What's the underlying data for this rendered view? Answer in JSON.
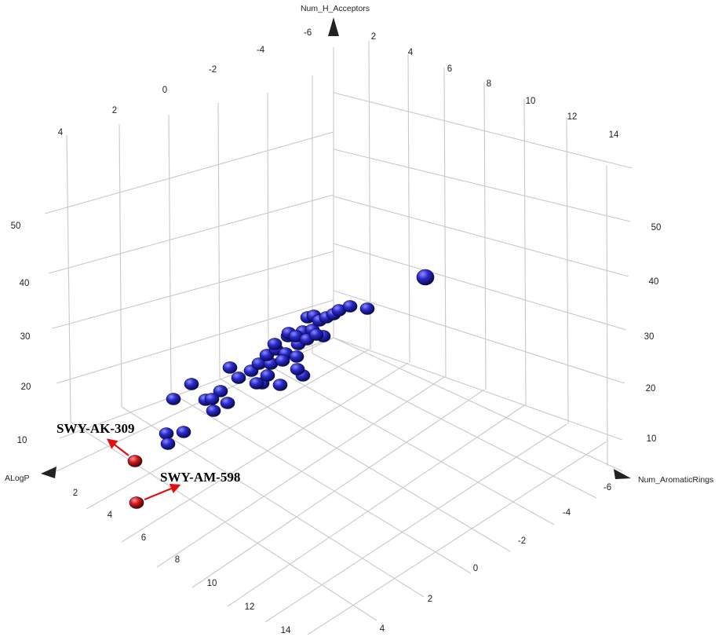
{
  "chart_data": {
    "type": "scatter",
    "projection": "3d",
    "title": "",
    "grid": true,
    "axes": {
      "x": {
        "label": "ALogP",
        "ticks": [
          "2",
          "4",
          "6",
          "8",
          "10",
          "12",
          "14"
        ]
      },
      "y": {
        "label": "Num_AromaticRings",
        "ticks": [
          "-6",
          "-4",
          "-2",
          "0",
          "2",
          "4"
        ]
      },
      "z": {
        "label": "Num_H_Acceptors",
        "ticks": [
          "10",
          "20",
          "30",
          "40",
          "50"
        ]
      },
      "top_left_ticks": [
        "-6",
        "-4",
        "-2",
        "0",
        "2",
        "4"
      ],
      "top_right_ticks": [
        "2",
        "4",
        "6",
        "8",
        "10",
        "12",
        "14"
      ],
      "right_z_ticks": [
        "10",
        "20",
        "30",
        "40",
        "50"
      ]
    },
    "series": [
      {
        "color": "#1a1aa6",
        "points": [
          [
            221,
            508
          ],
          [
            244,
            489
          ],
          [
            212,
            552
          ],
          [
            234,
            550
          ],
          [
            214,
            565
          ],
          [
            262,
            509
          ],
          [
            281,
            498
          ],
          [
            270,
            508
          ],
          [
            290,
            513
          ],
          [
            272,
            523
          ],
          [
            293,
            468
          ],
          [
            304,
            481
          ],
          [
            320,
            472
          ],
          [
            330,
            463
          ],
          [
            334,
            488
          ],
          [
            327,
            488
          ],
          [
            341,
            478
          ],
          [
            357,
            490
          ],
          [
            345,
            463
          ],
          [
            340,
            452
          ],
          [
            352,
            445
          ],
          [
            364,
            450
          ],
          [
            350,
            438
          ],
          [
            367,
            428
          ],
          [
            380,
            438
          ],
          [
            378,
            454
          ],
          [
            386,
            478
          ],
          [
            379,
            470
          ],
          [
            368,
            424
          ],
          [
            386,
            422
          ],
          [
            398,
            420
          ],
          [
            392,
            404
          ],
          [
            400,
            402
          ],
          [
            407,
            408
          ],
          [
            412,
            428
          ],
          [
            416,
            404
          ],
          [
            425,
            400
          ],
          [
            432,
            395
          ],
          [
            446,
            390
          ],
          [
            468,
            393
          ],
          [
            377,
            428
          ],
          [
            391,
            432
          ],
          [
            403,
            426
          ],
          [
            360,
            459
          ],
          [
            542,
            353
          ]
        ]
      },
      {
        "color": "#c41010",
        "points": [
          [
            172,
            587
          ],
          [
            174,
            640
          ]
        ]
      }
    ],
    "annotations": [
      {
        "text": "SWY-AK-309",
        "point": [
          172,
          587
        ]
      },
      {
        "text": "SWY-AM-598",
        "point": [
          174,
          640
        ]
      }
    ]
  }
}
